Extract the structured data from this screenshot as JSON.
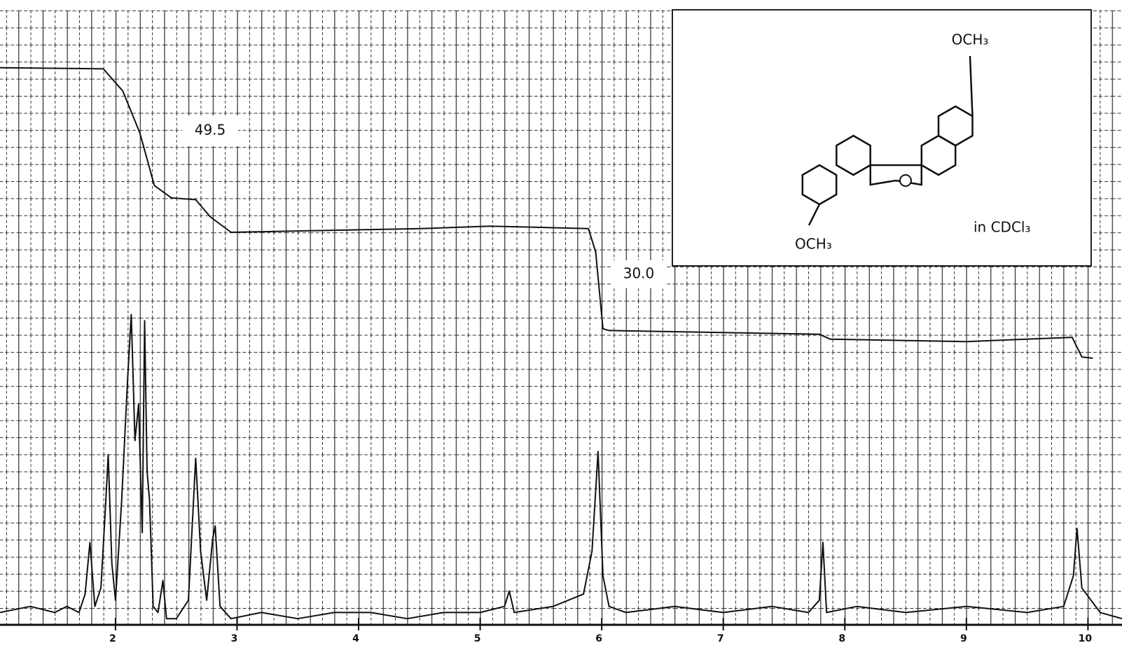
{
  "chart_data": {
    "type": "line",
    "xlim": [
      1.05,
      10.28
    ],
    "xticks": [
      2,
      3,
      4,
      5,
      6,
      7,
      8,
      9,
      10
    ],
    "ylim": [
      0,
      100
    ],
    "grid": true,
    "series": [
      {
        "color": "#111111",
        "x": [
          1.05,
          1.3,
          1.5,
          1.6,
          1.7,
          1.75,
          1.79,
          1.83,
          1.88,
          1.92,
          1.94,
          1.97,
          2.0,
          2.05,
          2.1,
          2.13,
          2.16,
          2.19,
          2.22,
          2.24,
          2.26,
          2.28,
          2.31,
          2.35,
          2.39,
          2.42,
          2.5,
          2.6,
          2.66,
          2.7,
          2.75,
          2.8,
          2.82,
          2.86,
          2.95,
          3.2,
          3.5,
          3.8,
          4.1,
          4.4,
          4.7,
          5.0,
          5.2,
          5.24,
          5.28,
          5.6,
          5.85,
          5.92,
          5.97,
          6.01,
          6.06,
          6.2,
          6.6,
          7.0,
          7.4,
          7.7,
          7.79,
          7.82,
          7.85,
          8.1,
          8.5,
          9.0,
          9.5,
          9.8,
          9.88,
          9.91,
          9.95,
          10.1,
          10.28
        ],
        "values": [
          2,
          3,
          2,
          3,
          2,
          5,
          13.4,
          3,
          6,
          20,
          27.7,
          10,
          4,
          20,
          40,
          50.5,
          30,
          35.9,
          15,
          49.5,
          25,
          20.3,
          3,
          2,
          7.2,
          1,
          1,
          4,
          27.1,
          12,
          4,
          14,
          16.1,
          3,
          1,
          2,
          1,
          2,
          2,
          1,
          2,
          2,
          3,
          5.5,
          2,
          3,
          5,
          12,
          28.2,
          8,
          3,
          2,
          3,
          2,
          3,
          2,
          4,
          13.4,
          2,
          3,
          2,
          3,
          2,
          3,
          8,
          15.7,
          6,
          2,
          1
        ]
      },
      {
        "color": "#111111",
        "x": [
          1.05,
          1.9,
          2.06,
          2.2,
          2.32,
          2.46,
          2.66,
          2.78,
          2.95,
          4.51,
          5.08,
          5.89,
          5.95,
          6.01,
          6.06,
          7.79,
          7.88,
          9.0,
          9.87,
          9.95,
          10.04
        ],
        "values": [
          90.7,
          90.5,
          86.9,
          80.1,
          71.5,
          69.5,
          69.2,
          66.4,
          63.9,
          64.5,
          64.9,
          64.5,
          60.7,
          48.2,
          47.9,
          47.3,
          46.5,
          46.1,
          46.8,
          43.6,
          43.4
        ]
      }
    ],
    "annotations": [
      "49.5",
      "30.0"
    ],
    "inset": {
      "labels": [
        "OCH₃",
        "OCH₃",
        "in CDCl₃"
      ]
    }
  }
}
